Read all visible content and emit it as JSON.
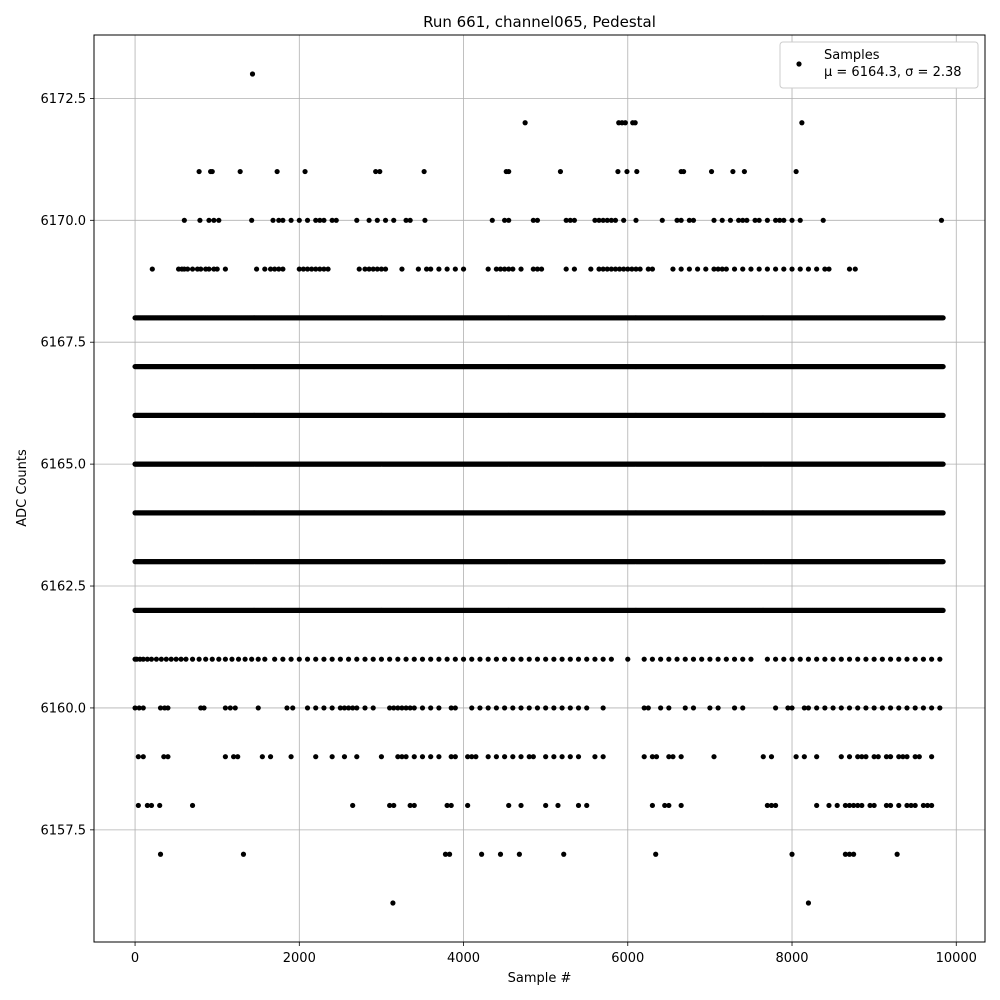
{
  "chart_data": {
    "type": "scatter",
    "title": "Run 661, channel065, Pedestal",
    "xlabel": "Sample #",
    "ylabel": "ADC Counts",
    "xlim": [
      -500,
      10350
    ],
    "ylim": [
      6155.2,
      6173.8
    ],
    "xticks": [
      0,
      2000,
      4000,
      6000,
      8000,
      10000
    ],
    "xtick_labels": [
      "0",
      "2000",
      "4000",
      "6000",
      "8000",
      "10000"
    ],
    "yticks": [
      6157.5,
      6160.0,
      6162.5,
      6165.0,
      6167.5,
      6170.0,
      6172.5
    ],
    "ytick_labels": [
      "6157.5",
      "6160.0",
      "6162.5",
      "6165.0",
      "6167.5",
      "6170.0",
      "6172.5"
    ],
    "grid": true,
    "legend_position": "top-right",
    "marker_color": "#000000",
    "series": [
      {
        "name": "Samples",
        "stats_label": "μ = 6164.3, σ = 2.38",
        "bands": [
          {
            "y": 6161,
            "x": [
              0,
              20,
              60,
              100,
              150,
              200,
              260,
              320,
              380,
              440,
              500,
              560,
              620,
              700,
              780,
              860,
              940,
              1020,
              1100,
              1180,
              1260,
              1340,
              1420,
              1500,
              1580,
              1700,
              1800,
              1900,
              2000,
              2100,
              2200,
              2300,
              2400,
              2500,
              2600,
              2700,
              2800,
              2900,
              3000,
              3100,
              3200,
              3300,
              3400,
              3500,
              3600,
              3700,
              3800,
              3900,
              4000,
              4100,
              4200,
              4300,
              4400,
              4500,
              4600,
              4700,
              4800,
              4900,
              5000,
              5100,
              5200,
              5300,
              5400,
              5500,
              5600,
              5700,
              5800,
              6000,
              6200,
              6300,
              6400,
              6500,
              6600,
              6700,
              6800,
              6900,
              7000,
              7100,
              7200,
              7300,
              7400,
              7500,
              7700,
              7800,
              7900,
              8000,
              8100,
              8200,
              8300,
              8400,
              8500,
              8600,
              8700,
              8800,
              8900,
              9000,
              9100,
              9200,
              9300,
              9400,
              9500,
              9600,
              9700,
              9800
            ]
          },
          {
            "y": 6160,
            "x": [
              0,
              50,
              100,
              310,
              360,
              400,
              800,
              840,
              1100,
              1160,
              1220,
              1500,
              1850,
              1920,
              2100,
              2200,
              2300,
              2400,
              2500,
              2550,
              2600,
              2650,
              2700,
              2800,
              2900,
              3100,
              3150,
              3200,
              3250,
              3300,
              3350,
              3400,
              3500,
              3600,
              3700,
              3850,
              3900,
              4100,
              4200,
              4300,
              4400,
              4500,
              4600,
              4700,
              4800,
              4900,
              5000,
              5100,
              5200,
              5300,
              5400,
              5500,
              5700,
              6200,
              6250,
              6400,
              6500,
              6700,
              6800,
              7000,
              7100,
              7300,
              7400,
              7800,
              7950,
              8000,
              8150,
              8200,
              8300,
              8400,
              8500,
              8600,
              8700,
              8800,
              8900,
              9000,
              9100,
              9200,
              9300,
              9400,
              9500,
              9600,
              9700,
              9800
            ]
          },
          {
            "y": 6159,
            "x": [
              40,
              100,
              350,
              400,
              1100,
              1200,
              1250,
              1550,
              1650,
              1900,
              2200,
              2400,
              2550,
              2700,
              3000,
              3200,
              3250,
              3300,
              3400,
              3500,
              3600,
              3700,
              3850,
              3900,
              4050,
              4100,
              4150,
              4300,
              4400,
              4500,
              4600,
              4700,
              4800,
              4850,
              5000,
              5100,
              5200,
              5300,
              5400,
              5600,
              5700,
              6200,
              6300,
              6350,
              6500,
              6550,
              6650,
              7050,
              7650,
              7750,
              8050,
              8150,
              8300,
              8600,
              8700,
              8800,
              8850,
              8900,
              9000,
              9050,
              9150,
              9200,
              9300,
              9350,
              9400,
              9500,
              9550,
              9700
            ]
          },
          {
            "y": 6158,
            "x": [
              40,
              150,
              200,
              300,
              700,
              2650,
              3100,
              3150,
              3350,
              3400,
              3800,
              3850,
              4050,
              4550,
              4700,
              5000,
              5150,
              5400,
              5500,
              6300,
              6450,
              6500,
              6650,
              7700,
              7750,
              7800,
              8300,
              8450,
              8550,
              8650,
              8700,
              8750,
              8800,
              8850,
              8950,
              9000,
              9150,
              9200,
              9300,
              9400,
              9450,
              9500,
              9600,
              9650,
              9700
            ]
          },
          {
            "y": 6157,
            "x": [
              310,
              1320,
              3780,
              3830,
              4220,
              4450,
              4680,
              5220,
              6340,
              8000,
              8650,
              8700,
              8750,
              9280
            ]
          },
          {
            "y": 6156,
            "x": [
              3140,
              8200
            ]
          },
          {
            "y": 6169,
            "x": [
              210,
              530,
              570,
              600,
              640,
              700,
              760,
              800,
              860,
              900,
              960,
              1000,
              1100,
              1480,
              1580,
              1650,
              1700,
              1750,
              1800,
              2000,
              2050,
              2100,
              2150,
              2200,
              2250,
              2300,
              2350,
              2730,
              2800,
              2850,
              2900,
              2950,
              3000,
              3050,
              3250,
              3450,
              3550,
              3600,
              3700,
              3800,
              3900,
              4000,
              4300,
              4400,
              4450,
              4500,
              4550,
              4600,
              4700,
              4850,
              4900,
              4950,
              5250,
              5350,
              5550,
              5650,
              5700,
              5750,
              5800,
              5850,
              5900,
              5950,
              6000,
              6050,
              6100,
              6150,
              6250,
              6300,
              6550,
              6650,
              6750,
              6850,
              6950,
              7050,
              7100,
              7150,
              7200,
              7300,
              7400,
              7500,
              7600,
              7700,
              7800,
              7900,
              8000,
              8100,
              8200,
              8300,
              8400,
              8450,
              8700,
              8770
            ]
          },
          {
            "y": 6170,
            "x": [
              600,
              790,
              900,
              960,
              1020,
              1420,
              1680,
              1750,
              1800,
              1900,
              2000,
              2100,
              2200,
              2250,
              2300,
              2400,
              2450,
              2700,
              2850,
              2950,
              3050,
              3150,
              3300,
              3350,
              3530,
              4350,
              4500,
              4550,
              4850,
              4900,
              5250,
              5300,
              5350,
              5600,
              5650,
              5700,
              5750,
              5800,
              5850,
              5950,
              6100,
              6420,
              6600,
              6650,
              6750,
              6800,
              7050,
              7150,
              7250,
              7350,
              7400,
              7450,
              7550,
              7600,
              7700,
              7800,
              7850,
              7900,
              8000,
              8100,
              8380,
              9820
            ]
          },
          {
            "y": 6171,
            "x": [
              780,
              920,
              940,
              1280,
              1730,
              2070,
              2930,
              2980,
              3520,
              4520,
              4550,
              5180,
              5880,
              5990,
              6110,
              6650,
              6680,
              7020,
              7280,
              7420,
              8050
            ]
          },
          {
            "y": 6172,
            "x": [
              4750,
              5890,
              5930,
              5970,
              6060,
              6090,
              8120
            ]
          },
          {
            "y": 6173,
            "x": [
              1430
            ]
          }
        ],
        "dense_bands": [
          6162,
          6163,
          6164,
          6165,
          6166,
          6167,
          6168
        ]
      }
    ]
  }
}
